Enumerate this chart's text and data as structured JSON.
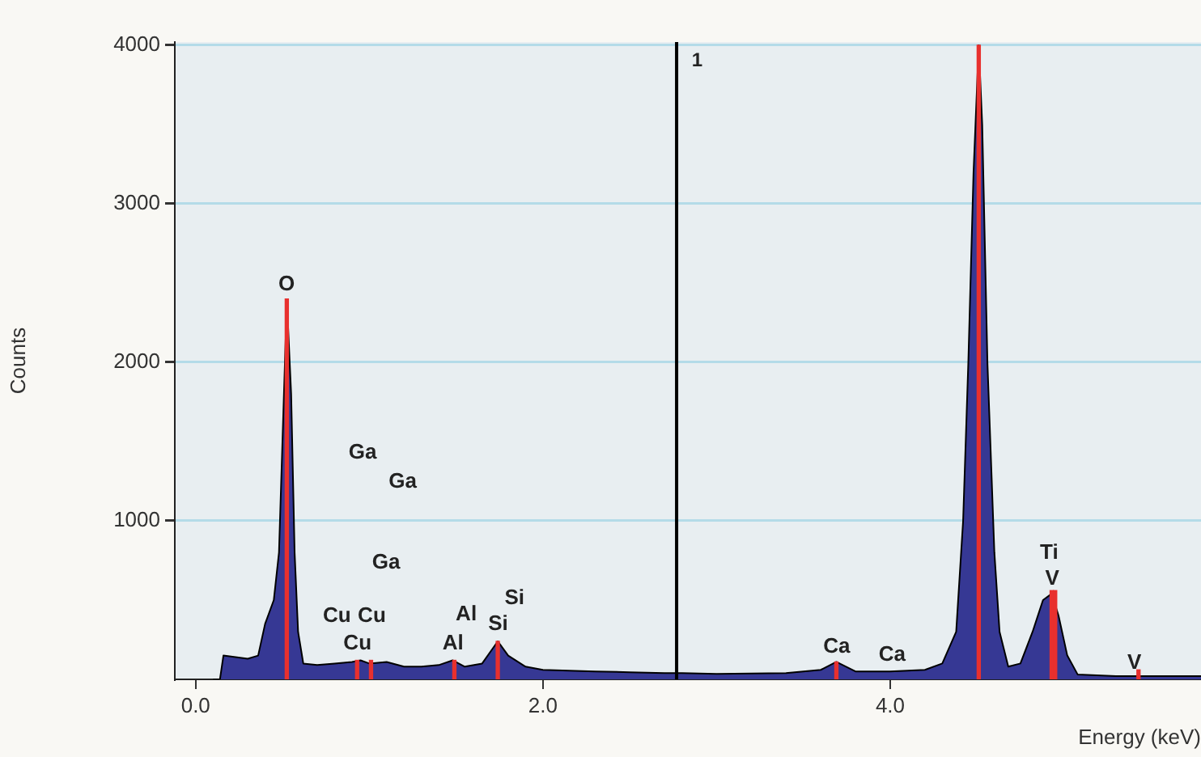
{
  "chart_data": {
    "type": "area",
    "xlabel": "Energy (keV)",
    "ylabel": "Counts",
    "xlim": [
      -0.12,
      5.79
    ],
    "ylim": [
      0,
      4020
    ],
    "xticks": [
      {
        "value": 0,
        "label": "0.0"
      },
      {
        "value": 2,
        "label": "2.0"
      },
      {
        "value": 4,
        "label": "4.0"
      }
    ],
    "yticks": [
      1000,
      2000,
      3000,
      4000
    ],
    "grid": "y",
    "series": [
      {
        "color": "#363894",
        "x": [
          0.1,
          0.14,
          0.16,
          0.3,
          0.36,
          0.4,
          0.45,
          0.48,
          0.5,
          0.52,
          0.53,
          0.55,
          0.57,
          0.59,
          0.62,
          0.7,
          0.8,
          0.9,
          0.95,
          1.0,
          1.1,
          1.2,
          1.3,
          1.4,
          1.48,
          1.55,
          1.65,
          1.74,
          1.8,
          1.9,
          2.0,
          2.3,
          2.5,
          2.7,
          2.8,
          3.0,
          3.4,
          3.6,
          3.69,
          3.8,
          4.0,
          4.2,
          4.3,
          4.38,
          4.42,
          4.45,
          4.48,
          4.51,
          4.53,
          4.56,
          4.6,
          4.63,
          4.68,
          4.75,
          4.82,
          4.88,
          4.93,
          4.97,
          5.02,
          5.08,
          5.3,
          5.79
        ],
        "values": [
          0,
          0,
          150,
          130,
          150,
          350,
          500,
          800,
          1500,
          2200,
          2280,
          1800,
          800,
          300,
          100,
          90,
          100,
          110,
          120,
          100,
          110,
          80,
          80,
          90,
          120,
          80,
          100,
          240,
          150,
          80,
          60,
          50,
          45,
          40,
          40,
          35,
          40,
          60,
          110,
          50,
          50,
          60,
          100,
          300,
          1000,
          2000,
          3200,
          4000,
          3500,
          2000,
          800,
          300,
          80,
          100,
          300,
          500,
          540,
          400,
          150,
          30,
          20,
          20
        ]
      },
      {
        "type": "bar",
        "color": "#e8302e",
        "x": [
          0.525,
          0.93,
          1.01,
          1.49,
          1.74,
          3.69,
          4.51,
          4.93,
          4.95,
          5.43
        ],
        "values": [
          2400,
          120,
          120,
          120,
          240,
          110,
          4000,
          560,
          560,
          60
        ]
      }
    ],
    "ref_lines": [
      {
        "axis": "x",
        "value": 2.77,
        "color": "#000000"
      }
    ],
    "annotations": [
      "1",
      "O",
      "Ga",
      "Ga",
      "Ga",
      "Cu",
      "Cu",
      "Cu",
      "Al",
      "Al",
      "Si",
      "Si",
      "Ca",
      "Ca",
      "Ti",
      "V",
      "V"
    ]
  }
}
